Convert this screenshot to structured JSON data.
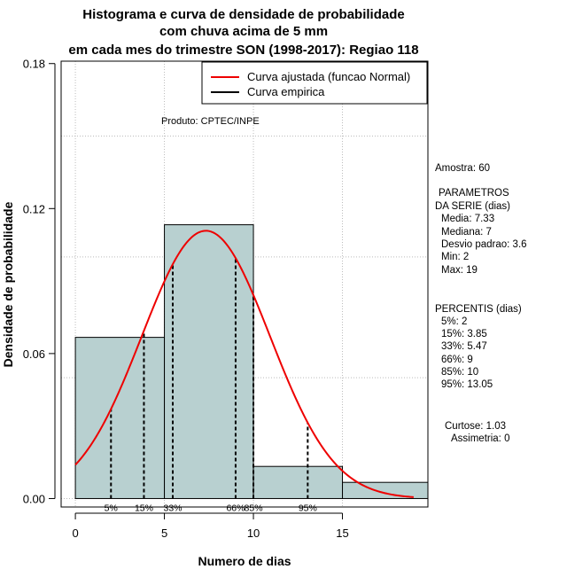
{
  "chart_data": {
    "type": "bar",
    "title_lines": [
      "Histograma e curva de densidade de probabilidade",
      "com chuva acima de 5 mm",
      "em cada mes do trimestre SON (1998-2017): Regiao 118"
    ],
    "xlabel": "Numero de dias",
    "ylabel": "Densidade de probabilidade",
    "xlim": [
      -0.8,
      19.8
    ],
    "ylim": [
      -0.0035,
      0.181
    ],
    "x_ticks": [
      0,
      5,
      10,
      15
    ],
    "x_tick_labels": [
      "0",
      "5",
      "10",
      "15"
    ],
    "y_ticks": [
      0.0,
      0.06,
      0.12,
      0.18
    ],
    "y_tick_labels": [
      "0.00",
      "0.06",
      "0.12",
      "0.18"
    ],
    "grid_x": [
      0,
      5,
      10,
      15
    ],
    "grid_y": [
      0.0,
      0.05,
      0.1,
      0.15
    ],
    "bars": [
      {
        "x0": 0,
        "x1": 5,
        "density": 0.0667
      },
      {
        "x0": 5,
        "x1": 10,
        "density": 0.1133
      },
      {
        "x0": 10,
        "x1": 15,
        "density": 0.0133
      },
      {
        "x0": 15,
        "x1": 20,
        "density": 0.0067
      }
    ],
    "normal_fit": {
      "mean": 7.33,
      "sd": 3.6,
      "x_start": 0,
      "x_end": 19
    },
    "percentile_lines": [
      {
        "label": "5%",
        "x": 2
      },
      {
        "label": "15%",
        "x": 3.85
      },
      {
        "label": "33%",
        "x": 5.47
      },
      {
        "label": "66%",
        "x": 9
      },
      {
        "label": "85%",
        "x": 10
      },
      {
        "label": "95%",
        "x": 13.05
      }
    ],
    "legend": {
      "position": "top-right",
      "entries": [
        {
          "label": "Curva ajustada (funcao Normal)",
          "color": "#ee0000"
        },
        {
          "label": "Curva empirica",
          "color": "#000000"
        }
      ]
    },
    "annotation": "Produto: CPTEC/INPE"
  },
  "side_panel": {
    "amostra": "Amostra: 60",
    "parametros_title_1": "PARAMETROS",
    "parametros_title_2": "DA SERIE (dias)",
    "media": "Media: 7.33",
    "mediana": "Mediana: 7",
    "desvio": "Desvio padrao: 3.6",
    "min": "Min: 2",
    "max": "Max: 19",
    "percentis_title": "PERCENTIS (dias)",
    "p5": "5%: 2",
    "p15": "15%: 3.85",
    "p33": "33%: 5.47",
    "p66": "66%: 9",
    "p85": "85%: 10",
    "p95": "95%: 13.05",
    "curtose": "Curtose: 1.03",
    "assimetria": "Assimetria: 0"
  },
  "colors": {
    "bar_fill": "#b8d0d0",
    "curve": "#ee0000",
    "grid": "#bbbbbb"
  }
}
